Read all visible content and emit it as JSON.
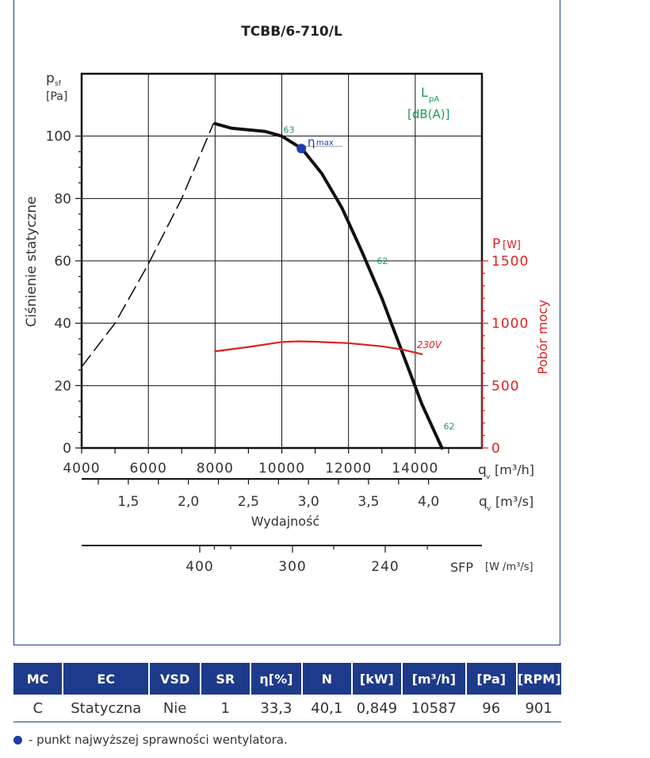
{
  "chart_data": {
    "type": "line",
    "title": "TCBB/6-710/L",
    "ylabel": "Ciśnienie statyczne",
    "ylabel_symbol": "p",
    "ylabel_sub": "sf",
    "ylabel_unit": "[Pa]",
    "xlabel": "Wydajność",
    "xlim": [
      4000,
      16000
    ],
    "ylim": [
      0,
      120
    ],
    "x_ticks": [
      4000,
      6000,
      8000,
      10000,
      12000,
      14000
    ],
    "x_tick_labels": [
      "4000",
      "6000",
      "8000",
      "10000",
      "12000",
      "14000"
    ],
    "x_unit_symbol": "q",
    "x_unit_sub": "v",
    "x_unit": "[m³/h]",
    "y_ticks": [
      0,
      20,
      40,
      60,
      80,
      100
    ],
    "y_tick_labels": [
      "0",
      "20",
      "40",
      "60",
      "80",
      "100"
    ],
    "secondary_axis_ms": {
      "ticks": [
        1.5,
        2.0,
        2.5,
        3.0,
        3.5,
        4.0
      ],
      "tick_labels": [
        "1,5",
        "2,0",
        "2,5",
        "3,0",
        "3,5",
        "4,0"
      ],
      "unit_symbol": "q",
      "unit_sub": "v",
      "unit": "[m³/s]"
    },
    "secondary_axis_sfp": {
      "ticks": [
        400,
        300,
        240
      ],
      "tick_labels": [
        "400",
        "300",
        "240"
      ],
      "label": "SFP",
      "unit": "[W /m³/s]"
    },
    "power_axis": {
      "label": "Pobór mocy",
      "symbol": "P",
      "unit": "[W]",
      "range": [
        0,
        1500
      ],
      "ticks": [
        0,
        500,
        1000,
        1500
      ],
      "tick_labels": [
        "0",
        "500",
        "1000",
        "1500"
      ],
      "color": "#e02020"
    },
    "noise_label": {
      "symbol": "L",
      "sub": "pA",
      "unit": "[dB(A)]",
      "color": "#1a9a55"
    },
    "series": [
      {
        "style": "dashed",
        "color": "#111111",
        "points": [
          [
            4000,
            26
          ],
          [
            5000,
            40
          ],
          [
            6000,
            59
          ],
          [
            7000,
            80
          ],
          [
            7950,
            104
          ]
        ]
      },
      {
        "style": "solid",
        "color": "#111111",
        "points": [
          [
            8000,
            104
          ],
          [
            8500,
            102.5
          ],
          [
            9000,
            102
          ],
          [
            9500,
            101.5
          ],
          [
            10000,
            100
          ],
          [
            10600,
            96
          ],
          [
            11200,
            88
          ],
          [
            11800,
            77
          ],
          [
            12400,
            63
          ],
          [
            13000,
            48
          ],
          [
            13600,
            31
          ],
          [
            14200,
            14
          ],
          [
            14800,
            0
          ]
        ]
      },
      {
        "name": "230V",
        "style": "solid",
        "color": "#e02020",
        "axis": "power",
        "points": [
          [
            8000,
            775
          ],
          [
            9000,
            810
          ],
          [
            10000,
            850
          ],
          [
            10500,
            855
          ],
          [
            11000,
            852
          ],
          [
            12000,
            840
          ],
          [
            13000,
            815
          ],
          [
            13600,
            790
          ],
          [
            14200,
            752
          ]
        ]
      }
    ],
    "eta_max": {
      "x": 10587,
      "y": 96,
      "label": "η",
      "sub": "max",
      "color": "#1f3bb0"
    },
    "annotations": [
      {
        "text": "63",
        "x": 10000,
        "y": 101,
        "color": "#1a9a55"
      },
      {
        "text": "62",
        "x": 12800,
        "y": 59,
        "color": "#1a9a55"
      },
      {
        "text": "62",
        "x": 14800,
        "y": 6,
        "color": "#1a9a55"
      },
      {
        "text": "230V",
        "x": 14000,
        "y": 32,
        "color": "#e02020"
      }
    ],
    "grid": true
  },
  "table": {
    "headers": [
      "MC",
      "EC",
      "VSD",
      "SR",
      "η[%]",
      "N",
      "[kW]",
      "[m³/h]",
      "[Pa]",
      "[RPM]"
    ],
    "row": [
      "C",
      "Statyczna",
      "Nie",
      "1",
      "33,3",
      "40,1",
      "0,849",
      "10587",
      "96",
      "901"
    ]
  },
  "legend": {
    "text": "- punkt najwyższej sprawności wentylatora."
  },
  "colors": {
    "frame": "#1f3f8f",
    "header_bg": "#1e3a8a",
    "eta_dot": "#1f3bb0",
    "power": "#e02020",
    "noise": "#1a9a55"
  }
}
